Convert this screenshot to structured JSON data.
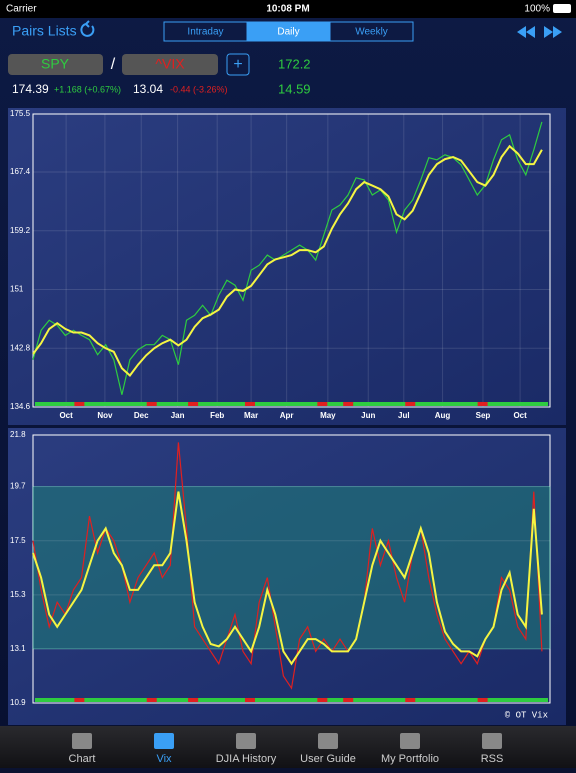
{
  "status_bar": {
    "carrier": "Carrier",
    "time": "10:08 PM",
    "battery": "100%"
  },
  "nav": {
    "title": "Pairs Lists",
    "tabs": [
      "Intraday",
      "Daily",
      "Weekly"
    ],
    "active_tab": 1
  },
  "quotes": {
    "symbol_a": "SPY",
    "separator": "/",
    "symbol_b": "^VIX",
    "add": "+",
    "ratio": "172.2",
    "price_a": "174.39",
    "change_a": "+1.168 (+0.67%)",
    "price_b": "13.04",
    "change_b": "-0.44 (-3.26%)",
    "ratio_avg": "14.59"
  },
  "chart_data": [
    {
      "type": "line",
      "xlim": [
        0,
        64
      ],
      "xticks": [
        {
          "value": 4.1,
          "label": "Oct"
        },
        {
          "value": 8.9,
          "label": "Nov"
        },
        {
          "value": 13.4,
          "label": "Dec"
        },
        {
          "value": 17.9,
          "label": "Jan"
        },
        {
          "value": 22.8,
          "label": "Feb"
        },
        {
          "value": 27,
          "label": "Mar"
        },
        {
          "value": 31.4,
          "label": "Apr"
        },
        {
          "value": 36.5,
          "label": "May"
        },
        {
          "value": 41.5,
          "label": "Jun"
        },
        {
          "value": 45.9,
          "label": "Jul"
        },
        {
          "value": 50.7,
          "label": "Aug"
        },
        {
          "value": 55.7,
          "label": "Sep"
        },
        {
          "value": 60.3,
          "label": "Oct"
        }
      ],
      "ylim": [
        134.6,
        175.5
      ],
      "yticks": [
        134.6,
        142.8,
        151,
        159.2,
        167.4,
        175.5
      ],
      "grid": true,
      "series": [
        {
          "color": "#2ecc40",
          "values": [
            141.2,
            145.3,
            146.7,
            146.0,
            144.6,
            145.3,
            144.6,
            144.0,
            141.9,
            143.3,
            141.2,
            136.3,
            141.2,
            142.6,
            143.3,
            143.3,
            144.6,
            144.0,
            140.5,
            146.7,
            147.4,
            148.8,
            147.4,
            150.2,
            152.3,
            151.6,
            149.5,
            153.7,
            154.4,
            155.8,
            155.1,
            155.8,
            156.5,
            157.2,
            156.5,
            155.1,
            158.6,
            162.1,
            162.8,
            164.2,
            166.6,
            166.3,
            164.2,
            164.9,
            163.5,
            159.0,
            162.1,
            163.5,
            166.3,
            169.4,
            169.1,
            169.8,
            169.4,
            168.4,
            166.3,
            164.2,
            165.6,
            169.1,
            171.9,
            172.6,
            169.1,
            167.0,
            170.5,
            174.4
          ]
        },
        {
          "color": "#f5f542",
          "values": [
            142.0,
            143.5,
            145.5,
            146.3,
            145.5,
            145.0,
            145.0,
            144.6,
            143.5,
            142.8,
            142.3,
            140.0,
            139.0,
            140.5,
            141.8,
            142.8,
            143.5,
            144.0,
            143.2,
            144.0,
            145.8,
            147.0,
            147.5,
            148.2,
            150.0,
            151.0,
            150.8,
            151.5,
            153.0,
            154.5,
            155.2,
            155.5,
            155.8,
            156.5,
            156.5,
            156.2,
            157.0,
            159.5,
            161.5,
            163.0,
            165.0,
            166.0,
            165.5,
            165.0,
            164.0,
            161.5,
            160.8,
            162.0,
            164.5,
            167.0,
            168.5,
            169.2,
            169.5,
            169.0,
            167.5,
            166.0,
            165.5,
            167.0,
            169.5,
            171.0,
            170.0,
            168.5,
            168.5,
            170.5
          ]
        }
      ]
    },
    {
      "type": "line",
      "xlim": [
        0,
        64
      ],
      "ylim": [
        10.9,
        21.8
      ],
      "yticks": [
        10.9,
        13.1,
        15.3,
        17.5,
        19.7,
        21.8
      ],
      "band": [
        13.1,
        19.7
      ],
      "grid": true,
      "annotation": "© OT Vix",
      "series": [
        {
          "color": "#e02020",
          "values": [
            17.5,
            15.5,
            14.0,
            15.0,
            14.5,
            15.5,
            16.0,
            18.5,
            17.0,
            18.0,
            17.5,
            16.5,
            15.0,
            16.0,
            16.5,
            17.0,
            16.0,
            16.5,
            21.5,
            18.0,
            14.0,
            13.5,
            13.0,
            12.5,
            13.5,
            14.5,
            13.0,
            12.5,
            15.0,
            16.0,
            14.0,
            12.0,
            11.5,
            13.5,
            14.0,
            13.0,
            13.5,
            13.0,
            13.5,
            13.0,
            13.5,
            15.0,
            18.0,
            16.5,
            17.5,
            16.0,
            15.0,
            17.0,
            18.0,
            16.0,
            14.5,
            13.5,
            13.0,
            12.5,
            13.0,
            12.5,
            13.5,
            14.0,
            16.0,
            15.5,
            14.0,
            13.5,
            19.5,
            13.0
          ]
        },
        {
          "color": "#f5f542",
          "values": [
            17.0,
            16.0,
            14.5,
            14.0,
            14.5,
            15.0,
            15.5,
            16.5,
            17.5,
            18.0,
            17.0,
            16.5,
            15.5,
            15.5,
            16.0,
            16.5,
            16.5,
            17.0,
            19.5,
            17.5,
            15.0,
            14.0,
            13.3,
            13.2,
            13.5,
            14.0,
            13.5,
            13.0,
            14.0,
            15.5,
            14.5,
            13.0,
            12.5,
            13.0,
            13.5,
            13.5,
            13.3,
            13.0,
            13.0,
            13.0,
            13.5,
            15.0,
            16.5,
            17.5,
            17.0,
            16.5,
            16.0,
            17.0,
            18.0,
            17.0,
            15.0,
            13.8,
            13.3,
            13.0,
            13.0,
            12.8,
            13.5,
            14.0,
            15.5,
            16.2,
            14.5,
            14.0,
            18.8,
            14.5
          ]
        }
      ]
    }
  ],
  "tab_bar": {
    "items": [
      "Chart",
      "Vix",
      "DJIA History",
      "User Guide",
      "My Portfolio",
      "RSS"
    ],
    "active": 1
  }
}
